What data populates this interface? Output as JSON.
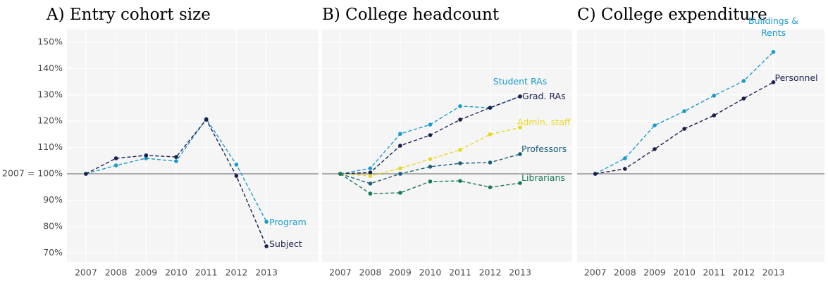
{
  "chart_data": [
    {
      "type": "line",
      "title": "A) Entry cohort size",
      "x": [
        2007,
        2008,
        2009,
        2010,
        2011,
        2012,
        2013
      ],
      "xlim": [
        2006.37,
        2014.73
      ],
      "xticks": [
        2007,
        2008,
        2009,
        2010,
        2011,
        2012,
        2013
      ],
      "ylim": [
        66.6,
        154.8
      ],
      "yticks": [
        {
          "value": 70,
          "label": "70%"
        },
        {
          "value": 80,
          "label": "80%"
        },
        {
          "value": 90,
          "label": "90%"
        },
        {
          "value": 100,
          "label": "2007 = 100%"
        },
        {
          "value": 110,
          "label": "110%"
        },
        {
          "value": 120,
          "label": "120%"
        },
        {
          "value": 130,
          "label": "130%"
        },
        {
          "value": 140,
          "label": "140%"
        },
        {
          "value": 150,
          "label": "150%"
        }
      ],
      "grid": true,
      "series": [
        {
          "name": "Program",
          "color": "#1a9bcc",
          "values": [
            100,
            103.2,
            105.9,
            104.8,
            120.9,
            103.5,
            81.8
          ]
        },
        {
          "name": "Subject",
          "color": "#1b1f4f",
          "values": [
            100,
            105.9,
            107,
            106.4,
            120.6,
            99.2,
            72.5
          ]
        }
      ]
    },
    {
      "type": "line",
      "title": "B) College headcount",
      "x": [
        2007,
        2008,
        2009,
        2010,
        2011,
        2012,
        2013
      ],
      "xlim": [
        2006.39,
        2014.74
      ],
      "xticks": [
        2007,
        2008,
        2009,
        2010,
        2011,
        2012,
        2013
      ],
      "ylim": [
        66.6,
        154.8
      ],
      "series": [
        {
          "name": "Student RAs",
          "color": "#1a9bcc",
          "values": [
            100,
            102.1,
            115.2,
            118.7,
            125.7,
            125.1,
            129.4
          ]
        },
        {
          "name": "Grad. RAs",
          "color": "#1b1f4f",
          "values": [
            100,
            100.5,
            110.7,
            114.7,
            120.6,
            125.1,
            129.4
          ]
        },
        {
          "name": "Admin. staff",
          "color": "#e8d826",
          "values": [
            100,
            99.2,
            102.1,
            105.6,
            109.1,
            115,
            117.6
          ]
        },
        {
          "name": "Professors",
          "color": "#1b5e79",
          "values": [
            100,
            96.3,
            100,
            102.7,
            104,
            104.3,
            107.5
          ]
        },
        {
          "name": "Librarians",
          "color": "#197a5b",
          "values": [
            100,
            92.5,
            92.8,
            97.1,
            97.3,
            94.9,
            96.5
          ]
        }
      ]
    },
    {
      "type": "line",
      "title": "C) College expenditure",
      "x": [
        2007,
        2008,
        2009,
        2010,
        2011,
        2012,
        2013
      ],
      "xlim": [
        2006.39,
        2014.72
      ],
      "xticks": [
        2007,
        2008,
        2009,
        2010,
        2011,
        2012,
        2013
      ],
      "ylim": [
        66.6,
        154.8
      ],
      "series": [
        {
          "name": "Buildings & Rents",
          "color": "#1a9bcc",
          "values": [
            100,
            105.9,
            118.4,
            123.8,
            129.7,
            135.3,
            146.3
          ]
        },
        {
          "name": "Personnel",
          "color": "#1b1f4f",
          "values": [
            100,
            101.9,
            109.4,
            117.1,
            122.2,
            128.6,
            134.8
          ]
        }
      ]
    }
  ]
}
